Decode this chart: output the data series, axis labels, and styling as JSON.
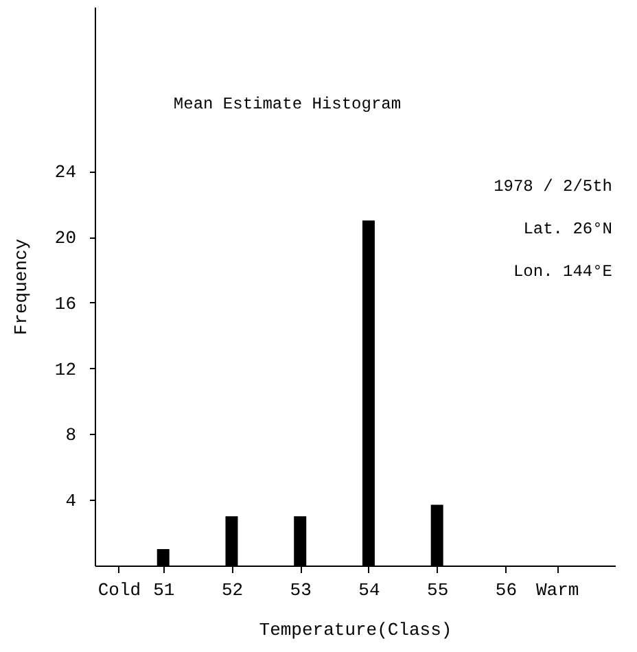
{
  "chart_data": {
    "type": "bar",
    "title": "Mean Estimate Histogram",
    "xlabel": "Temperature(Class)",
    "ylabel": "Frequency",
    "x": [
      51,
      52,
      53,
      54,
      55
    ],
    "values": [
      1,
      3,
      3,
      21,
      3.7
    ],
    "color": "#000000",
    "xlim": [
      50,
      57.6
    ],
    "xticks": [
      {
        "value": 50.35,
        "label": "Cold"
      },
      51,
      52,
      53,
      54,
      55,
      56,
      {
        "value": 56.75,
        "label": "Warm"
      }
    ],
    "ylim": [
      0,
      34
    ],
    "yticks": [
      4,
      8,
      12,
      16,
      20,
      24
    ],
    "annotations": [
      "1978 / 2/5th",
      "Lat.  26°N",
      "Lon. 144°E"
    ],
    "grid": false
  }
}
